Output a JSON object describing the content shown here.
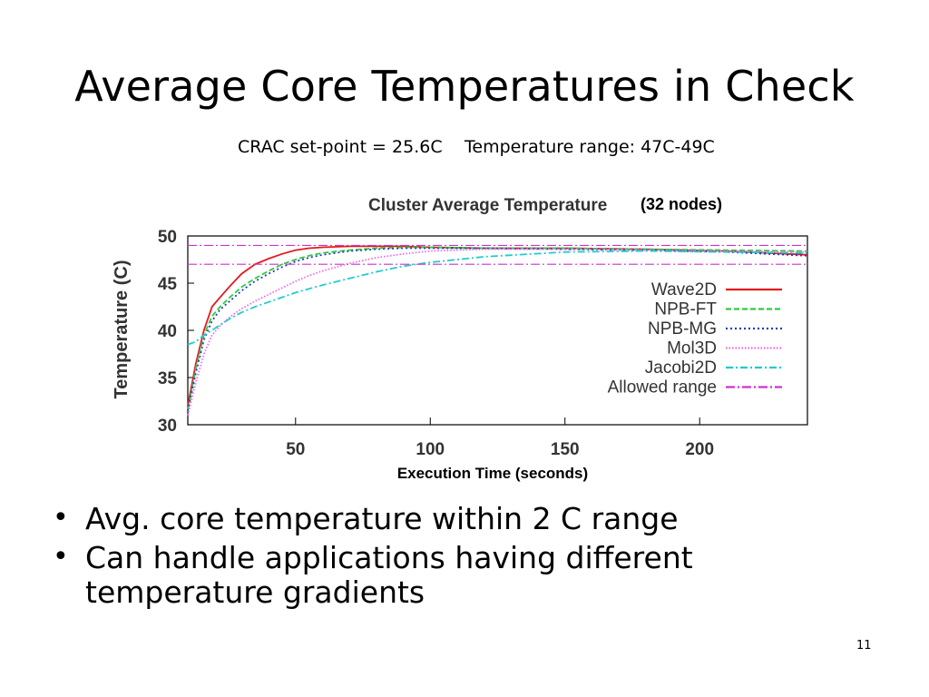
{
  "slide": {
    "title": "Average Core Temperatures in Check",
    "subtitle_left": "CRAC set-point = 25.6C",
    "subtitle_right": "Temperature range: 47C-49C",
    "bullets": [
      "Avg. core temperature within 2 C range",
      "Can handle applications having different temperature gradients"
    ],
    "page_number": "11"
  },
  "colors": {
    "Wave2D": "#e41a1c",
    "NPB-FT": "#2ecc40",
    "NPB-MG": "#1f3fbf",
    "Mol3D": "#ee66ee",
    "Jacobi2D": "#22cccc",
    "Allowed range": "#cc33cc"
  },
  "chart_data": {
    "type": "line",
    "title": "Cluster Average Temperature",
    "title_suffix": "(32 nodes)",
    "xlabel": "Execution Time (seconds)",
    "ylabel": "Temperature (C)",
    "xlim": [
      10,
      240
    ],
    "ylim": [
      30,
      50
    ],
    "xticks": [
      50,
      100,
      150,
      200
    ],
    "yticks": [
      30,
      35,
      40,
      45,
      50
    ],
    "legend_position": "right",
    "series": [
      {
        "name": "Wave2D",
        "style": "solid",
        "x": [
          10,
          13,
          16,
          19,
          22,
          26,
          30,
          35,
          40,
          45,
          50,
          55,
          60,
          70,
          80,
          90,
          100,
          120,
          150,
          180,
          210,
          240
        ],
        "y": [
          32.0,
          36.5,
          40.0,
          42.5,
          43.5,
          44.8,
          46.0,
          47.0,
          47.6,
          48.1,
          48.5,
          48.7,
          48.8,
          48.9,
          48.9,
          48.9,
          48.8,
          48.7,
          48.7,
          48.6,
          48.4,
          48.0
        ]
      },
      {
        "name": "NPB-FT",
        "style": "dashed",
        "x": [
          10,
          13,
          16,
          19,
          22,
          26,
          30,
          35,
          40,
          45,
          50,
          55,
          60,
          70,
          80,
          90,
          100,
          120,
          150,
          180,
          210,
          240
        ],
        "y": [
          31.5,
          36.0,
          39.5,
          41.5,
          42.5,
          43.6,
          44.6,
          45.5,
          46.3,
          47.0,
          47.5,
          47.9,
          48.2,
          48.5,
          48.7,
          48.8,
          48.8,
          48.7,
          48.7,
          48.6,
          48.5,
          48.4
        ]
      },
      {
        "name": "NPB-MG",
        "style": "dotted",
        "x": [
          10,
          13,
          16,
          19,
          22,
          26,
          30,
          35,
          40,
          45,
          50,
          55,
          60,
          70,
          80,
          90,
          100,
          120,
          150,
          180,
          210,
          240
        ],
        "y": [
          31.5,
          35.5,
          39.0,
          41.0,
          42.2,
          43.2,
          44.2,
          45.2,
          46.0,
          46.7,
          47.3,
          47.7,
          48.0,
          48.4,
          48.6,
          48.7,
          48.7,
          48.7,
          48.6,
          48.5,
          48.3,
          47.9
        ]
      },
      {
        "name": "Mol3D",
        "style": "dotted-fine",
        "x": [
          10,
          13,
          16,
          19,
          22,
          26,
          30,
          35,
          40,
          45,
          50,
          55,
          60,
          70,
          80,
          90,
          100,
          120,
          150,
          180,
          210,
          240
        ],
        "y": [
          31.0,
          34.5,
          37.5,
          39.5,
          40.5,
          41.5,
          42.3,
          43.1,
          43.8,
          44.5,
          45.2,
          45.8,
          46.3,
          47.1,
          47.7,
          48.1,
          48.4,
          48.6,
          48.6,
          48.5,
          48.4,
          48.3
        ]
      },
      {
        "name": "Jacobi2D",
        "style": "dashdot",
        "x": [
          10,
          13,
          16,
          19,
          22,
          26,
          30,
          35,
          40,
          45,
          50,
          55,
          60,
          70,
          80,
          90,
          100,
          120,
          150,
          180,
          210,
          240
        ],
        "y": [
          38.5,
          38.8,
          39.5,
          40.0,
          40.6,
          41.3,
          41.9,
          42.5,
          43.0,
          43.5,
          44.0,
          44.4,
          44.8,
          45.5,
          46.2,
          46.8,
          47.2,
          47.8,
          48.3,
          48.4,
          48.3,
          48.2
        ]
      },
      {
        "name": "Allowed range",
        "style": "dashdot-range",
        "bounds": [
          47,
          49
        ]
      }
    ]
  }
}
